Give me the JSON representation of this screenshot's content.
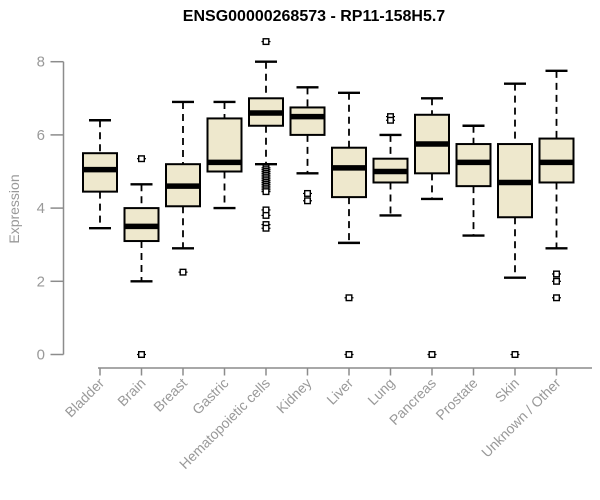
{
  "title": "ENSG00000268573 - RP11-158H5.7",
  "chart_data": {
    "type": "boxplot",
    "title": "ENSG00000268573 - RP11-158H5.7",
    "xlabel": "",
    "ylabel": "Expression",
    "ylim": [
      0,
      8
    ],
    "yticks": [
      0,
      2,
      4,
      6,
      8
    ],
    "grid": false,
    "legend": "none",
    "colors": {
      "box_fill": "#EEE8CD",
      "box_stroke": "#000000",
      "median": "#000000",
      "whisker": "#000000",
      "axis_line": "#8C8C8C",
      "axis_text": "#999999",
      "title_text": "#000000",
      "background": "#FFFFFF"
    },
    "categories": [
      "Bladder",
      "Brain",
      "Breast",
      "Gastric",
      "Hematopoietic cells",
      "Kidney",
      "Liver",
      "Lung",
      "Pancreas",
      "Prostate",
      "Skin",
      "Unknown / Other"
    ],
    "series": [
      {
        "name": "Bladder",
        "low": 3.45,
        "q1": 4.45,
        "median": 5.05,
        "q3": 5.5,
        "high": 6.4,
        "outliers": []
      },
      {
        "name": "Brain",
        "low": 2.0,
        "q1": 3.1,
        "median": 3.5,
        "q3": 4.0,
        "high": 4.65,
        "outliers": [
          5.35,
          0
        ]
      },
      {
        "name": "Breast",
        "low": 2.9,
        "q1": 4.05,
        "median": 4.6,
        "q3": 5.2,
        "high": 6.9,
        "outliers": [
          2.25
        ]
      },
      {
        "name": "Gastric",
        "low": 4.0,
        "q1": 5.0,
        "median": 5.25,
        "q3": 6.45,
        "high": 6.9,
        "outliers": []
      },
      {
        "name": "Hematopoietic cells",
        "low": 5.2,
        "q1": 6.25,
        "median": 6.6,
        "q3": 7.0,
        "high": 8.0,
        "outliers": [
          8.55,
          5.1,
          5.05,
          5.0,
          4.95,
          4.9,
          4.85,
          4.8,
          4.75,
          4.7,
          4.65,
          4.6,
          4.55,
          4.5,
          4.45,
          3.95,
          3.8,
          3.55,
          3.45
        ]
      },
      {
        "name": "Kidney",
        "low": 4.95,
        "q1": 6.0,
        "median": 6.5,
        "q3": 6.75,
        "high": 7.3,
        "outliers": [
          4.4,
          4.2
        ]
      },
      {
        "name": "Liver",
        "low": 3.05,
        "q1": 4.3,
        "median": 5.1,
        "q3": 5.65,
        "high": 7.15,
        "outliers": [
          1.55,
          0
        ]
      },
      {
        "name": "Lung",
        "low": 3.8,
        "q1": 4.7,
        "median": 5.0,
        "q3": 5.35,
        "high": 6.0,
        "outliers": [
          6.5,
          6.4
        ]
      },
      {
        "name": "Pancreas",
        "low": 4.25,
        "q1": 4.95,
        "median": 5.75,
        "q3": 6.55,
        "high": 7.0,
        "outliers": [
          0
        ]
      },
      {
        "name": "Prostate",
        "low": 3.25,
        "q1": 4.6,
        "median": 5.25,
        "q3": 5.75,
        "high": 6.25,
        "outliers": []
      },
      {
        "name": "Skin",
        "low": 2.1,
        "q1": 3.75,
        "median": 4.7,
        "q3": 5.75,
        "high": 7.4,
        "outliers": [
          0
        ]
      },
      {
        "name": "Unknown / Other",
        "low": 2.9,
        "q1": 4.7,
        "median": 5.25,
        "q3": 5.9,
        "high": 7.75,
        "outliers": [
          2.2,
          2.0,
          1.55
        ]
      }
    ]
  }
}
